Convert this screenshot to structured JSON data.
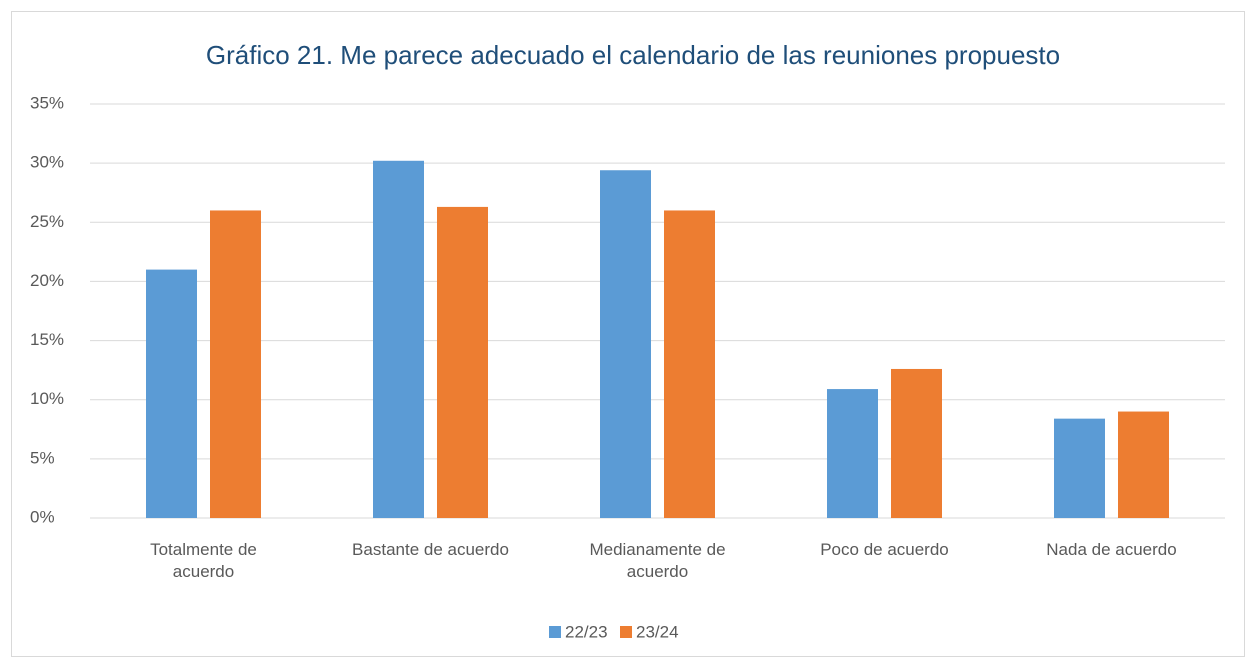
{
  "chart_data": {
    "type": "bar",
    "title": "Gráfico 21. Me parece adecuado el calendario de las reuniones propuesto",
    "categories": [
      "Totalmente de acuerdo",
      "Bastante de acuerdo",
      "Medianamente de acuerdo",
      "Poco de acuerdo",
      "Nada de acuerdo"
    ],
    "series": [
      {
        "name": "22/23",
        "color": "#5b9bd5",
        "values": [
          21,
          30.2,
          29.4,
          10.9,
          8.4
        ]
      },
      {
        "name": "23/24",
        "color": "#ed7d31",
        "values": [
          26,
          26.3,
          26,
          12.6,
          9
        ]
      }
    ],
    "ylim": [
      0,
      35
    ],
    "yticks": [
      {
        "value": 0,
        "label": "0%"
      },
      {
        "value": 5,
        "label": "5%"
      },
      {
        "value": 10,
        "label": "10%"
      },
      {
        "value": 15,
        "label": "15%"
      },
      {
        "value": 20,
        "label": "20%"
      },
      {
        "value": 25,
        "label": "25%"
      },
      {
        "value": 30,
        "label": "30%"
      },
      {
        "value": 35,
        "label": "35%"
      }
    ],
    "grid": true,
    "legend": "bottom"
  }
}
